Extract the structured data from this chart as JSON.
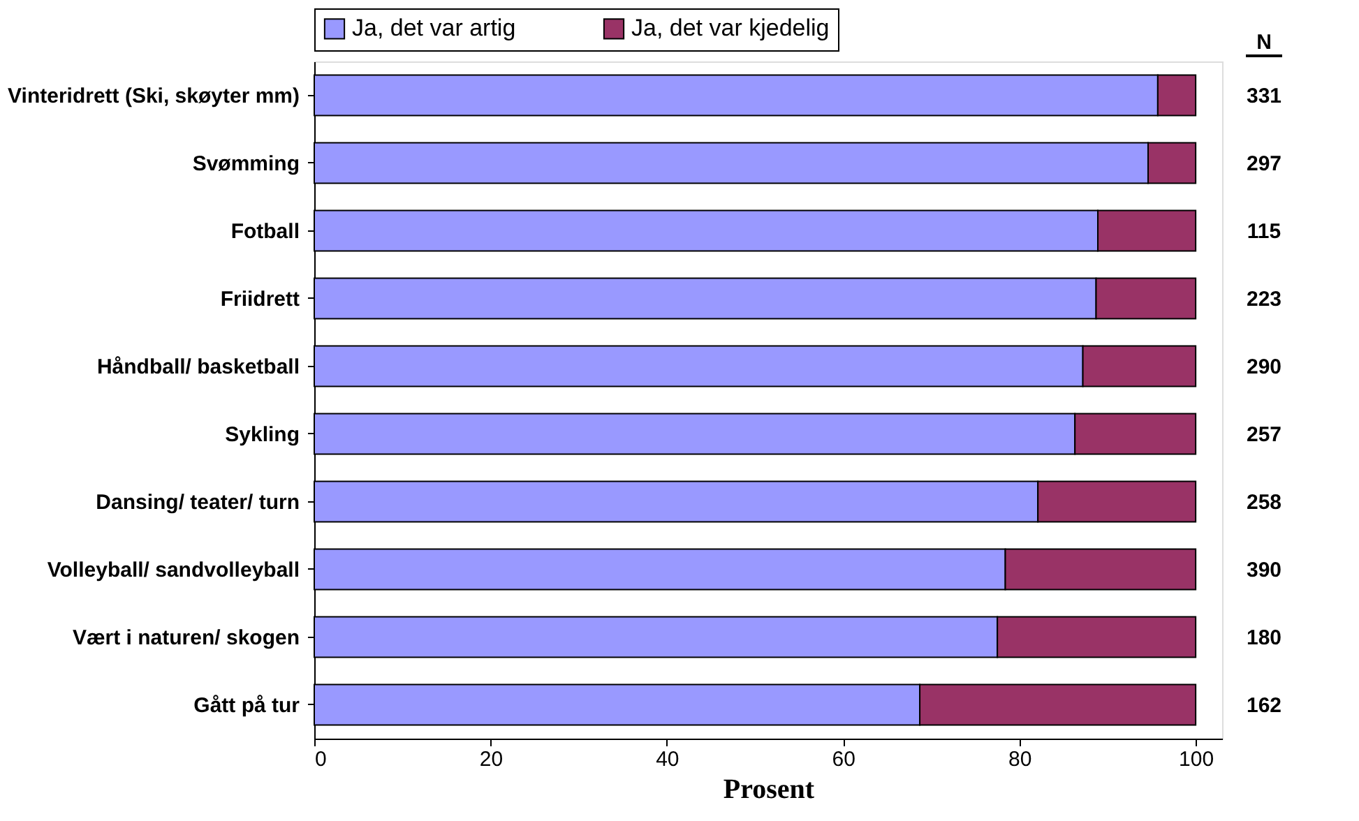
{
  "chart_data": {
    "type": "bar",
    "orientation": "horizontal",
    "stacked": true,
    "xlabel": "Prosent",
    "categories": [
      "Vinteridrett (Ski, skøyter mm)",
      "Svømming",
      "Fotball",
      "Friidrett",
      "Håndball/ basketball",
      "Sykling",
      "Dansing/ teater/ turn",
      "Volleyball/ sandvolleyball",
      "Vært i naturen/ skogen",
      "Gått på tur"
    ],
    "series": [
      {
        "name": "Ja, det var artig",
        "color": "#9999ff",
        "values": [
          95.7,
          94.6,
          88.9,
          88.7,
          87.2,
          86.3,
          82.1,
          78.4,
          77.5,
          68.7
        ]
      },
      {
        "name": "Ja, det var kjedelig",
        "color": "#993366",
        "values": [
          4.3,
          5.4,
          11.1,
          11.3,
          12.8,
          13.7,
          17.9,
          21.6,
          22.5,
          31.3
        ]
      }
    ],
    "xlim": [
      0,
      103
    ],
    "xticks": [
      0,
      20,
      40,
      60,
      80,
      100
    ],
    "grid": false,
    "legend": "top",
    "annotations": [
      "N",
      "331",
      "297",
      "115",
      "223",
      "290",
      "257",
      "258",
      "390",
      "180",
      "162"
    ]
  }
}
